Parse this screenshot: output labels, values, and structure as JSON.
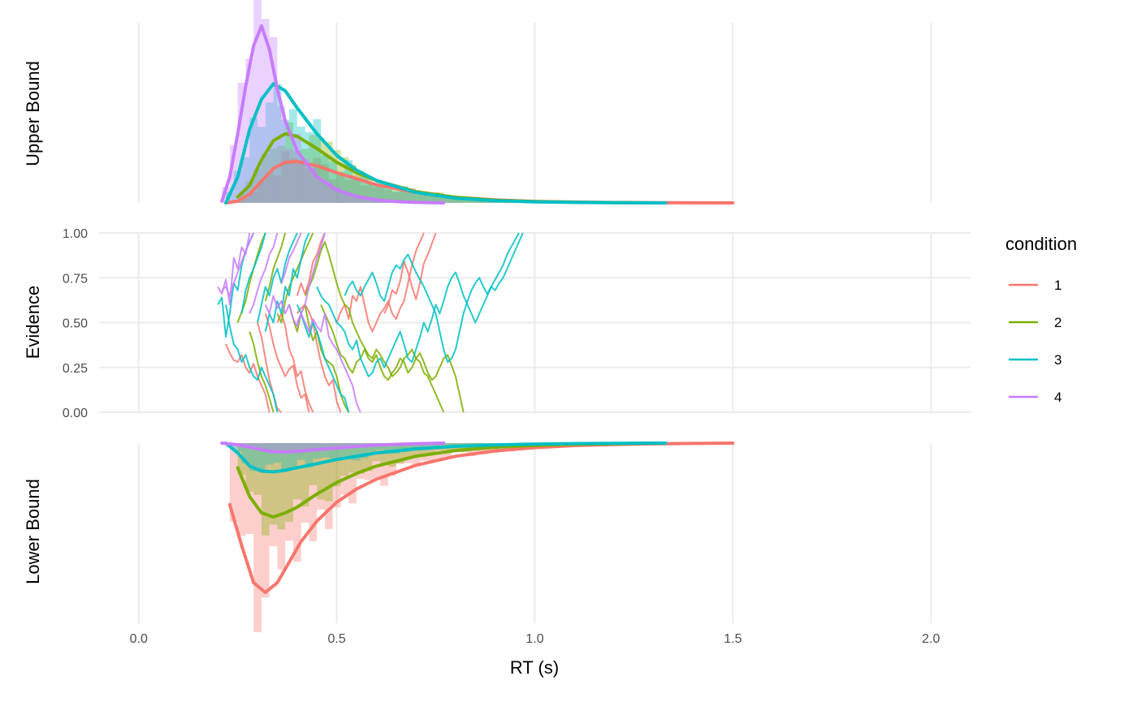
{
  "chart_data": {
    "type": "line",
    "xlabel": "RT (s)",
    "x_ticks": [
      "0.0",
      "0.5",
      "1.0",
      "1.5",
      "2.0"
    ],
    "x_tick_values": [
      0,
      0.5,
      1.0,
      1.5,
      2.0
    ],
    "xlim": [
      -0.1,
      2.1
    ],
    "grid": true,
    "legend": {
      "title": "condition",
      "placement": "right",
      "entries": [
        {
          "name": "1",
          "color": "#F8766D"
        },
        {
          "name": "2",
          "color": "#7CAE00"
        },
        {
          "name": "3",
          "color": "#00BFC4"
        },
        {
          "name": "4",
          "color": "#C77CFF"
        }
      ]
    },
    "panels": [
      {
        "id": "upper",
        "ylabel": "Upper Bound",
        "kind": "density_histogram"
      },
      {
        "id": "evidence",
        "ylabel": "Evidence",
        "kind": "paths",
        "y_ticks": [
          "0.00",
          "0.25",
          "0.50",
          "0.75",
          "1.00"
        ],
        "y_tick_values": [
          0,
          0.25,
          0.5,
          0.75,
          1.0
        ],
        "ylim": [
          0,
          1
        ]
      },
      {
        "id": "lower",
        "ylabel": "Lower Bound",
        "kind": "density_histogram"
      }
    ],
    "upper_density": [
      {
        "condition": "1",
        "x": [
          0.22,
          0.25,
          0.28,
          0.31,
          0.34,
          0.37,
          0.4,
          0.45,
          0.5,
          0.55,
          0.6,
          0.7,
          0.8,
          0.9,
          1.0,
          1.1,
          1.2,
          1.3,
          1.4,
          1.5
        ],
        "y": [
          0.0,
          0.02,
          0.1,
          0.25,
          0.4,
          0.47,
          0.48,
          0.43,
          0.35,
          0.28,
          0.21,
          0.12,
          0.065,
          0.035,
          0.018,
          0.009,
          0.005,
          0.003,
          0.001,
          0.0
        ]
      },
      {
        "condition": "2",
        "x": [
          0.25,
          0.28,
          0.31,
          0.34,
          0.37,
          0.4,
          0.45,
          0.5,
          0.55,
          0.6,
          0.7,
          0.8,
          0.9,
          1.0,
          1.1,
          1.2,
          1.3
        ],
        "y": [
          0.07,
          0.2,
          0.5,
          0.72,
          0.8,
          0.77,
          0.63,
          0.47,
          0.35,
          0.26,
          0.13,
          0.065,
          0.03,
          0.015,
          0.007,
          0.003,
          0.0
        ]
      },
      {
        "condition": "3",
        "x": [
          0.22,
          0.25,
          0.28,
          0.31,
          0.34,
          0.37,
          0.4,
          0.45,
          0.5,
          0.55,
          0.6,
          0.7,
          0.8,
          0.9,
          1.0,
          1.1,
          1.2,
          1.33
        ],
        "y": [
          0.0,
          0.3,
          0.85,
          1.2,
          1.38,
          1.3,
          1.1,
          0.8,
          0.55,
          0.38,
          0.26,
          0.12,
          0.055,
          0.025,
          0.012,
          0.006,
          0.003,
          0.0
        ]
      },
      {
        "condition": "4",
        "x": [
          0.21,
          0.23,
          0.25,
          0.27,
          0.29,
          0.31,
          0.33,
          0.35,
          0.37,
          0.4,
          0.45,
          0.5,
          0.55,
          0.6,
          0.65,
          0.7,
          0.77
        ],
        "y": [
          0.02,
          0.3,
          0.8,
          1.35,
          1.82,
          2.05,
          1.78,
          1.32,
          0.95,
          0.6,
          0.3,
          0.15,
          0.075,
          0.035,
          0.015,
          0.006,
          0.0
        ]
      }
    ],
    "lower_density": [
      {
        "condition": "1",
        "x": [
          0.23,
          0.26,
          0.29,
          0.32,
          0.35,
          0.38,
          0.41,
          0.45,
          0.5,
          0.55,
          0.6,
          0.7,
          0.8,
          0.9,
          1.0,
          1.1,
          1.2,
          1.3,
          1.4,
          1.5
        ],
        "y": [
          0.75,
          1.25,
          1.7,
          1.82,
          1.7,
          1.45,
          1.2,
          0.95,
          0.72,
          0.56,
          0.44,
          0.27,
          0.16,
          0.095,
          0.055,
          0.03,
          0.017,
          0.009,
          0.004,
          0.0
        ]
      },
      {
        "condition": "2",
        "x": [
          0.25,
          0.28,
          0.31,
          0.34,
          0.37,
          0.4,
          0.45,
          0.5,
          0.55,
          0.6,
          0.7,
          0.8,
          0.9,
          1.0,
          1.1,
          1.2,
          1.3
        ],
        "y": [
          0.3,
          0.65,
          0.85,
          0.9,
          0.85,
          0.78,
          0.62,
          0.48,
          0.37,
          0.28,
          0.16,
          0.09,
          0.05,
          0.027,
          0.014,
          0.007,
          0.0
        ]
      },
      {
        "condition": "3",
        "x": [
          0.22,
          0.25,
          0.28,
          0.31,
          0.34,
          0.37,
          0.4,
          0.45,
          0.5,
          0.55,
          0.6,
          0.7,
          0.8,
          0.9,
          1.0,
          1.1,
          1.2,
          1.33
        ],
        "y": [
          0.0,
          0.12,
          0.28,
          0.34,
          0.35,
          0.33,
          0.3,
          0.25,
          0.2,
          0.16,
          0.12,
          0.07,
          0.04,
          0.022,
          0.012,
          0.006,
          0.003,
          0.0
        ]
      },
      {
        "condition": "4",
        "x": [
          0.21,
          0.25,
          0.29,
          0.33,
          0.37,
          0.4,
          0.45,
          0.5,
          0.55,
          0.6,
          0.65,
          0.7,
          0.77
        ],
        "y": [
          0.0,
          0.02,
          0.06,
          0.1,
          0.11,
          0.1,
          0.08,
          0.06,
          0.04,
          0.025,
          0.015,
          0.008,
          0.0
        ]
      }
    ],
    "evidence_paths": [
      {
        "condition": "1",
        "t0": 0.22,
        "y": [
          0.38,
          0.33,
          0.29,
          0.28,
          0.32,
          0.25,
          0.22,
          0.27,
          0.2,
          0.15,
          0.1,
          0.0
        ]
      },
      {
        "condition": "1",
        "t0": 0.3,
        "y": [
          0.5,
          0.42,
          0.3,
          0.18,
          0.1,
          0.02,
          0.0
        ]
      },
      {
        "condition": "1",
        "t0": 0.32,
        "y": [
          0.55,
          0.48,
          0.38,
          0.3,
          0.25,
          0.2,
          0.24,
          0.26,
          0.15,
          0.08,
          0.1,
          0.0
        ]
      },
      {
        "condition": "1",
        "t0": 0.35,
        "y": [
          0.5,
          0.55,
          0.48,
          0.35,
          0.3,
          0.2,
          0.23,
          0.12,
          0.05,
          0.0
        ]
      },
      {
        "condition": "1",
        "t0": 0.4,
        "y": [
          0.55,
          0.58,
          0.6,
          0.56,
          0.5,
          0.38,
          0.28,
          0.2,
          0.15,
          0.18,
          0.06,
          0.0
        ]
      },
      {
        "condition": "1",
        "t0": 0.4,
        "y": [
          0.65,
          0.72,
          0.66,
          0.73,
          0.84,
          0.88,
          0.95,
          1.0
        ]
      },
      {
        "condition": "1",
        "t0": 0.5,
        "y": [
          0.5,
          0.56,
          0.6,
          0.52,
          0.65,
          0.62,
          0.7,
          0.6,
          0.5,
          0.45,
          0.5,
          0.55,
          0.58,
          0.62,
          0.55,
          0.52,
          0.58,
          0.62,
          0.72,
          0.82,
          0.9,
          0.95,
          1.0
        ]
      },
      {
        "condition": "1",
        "t0": 0.62,
        "y": [
          0.55,
          0.6,
          0.68,
          0.66,
          0.73,
          0.84,
          0.78,
          0.7,
          0.63,
          0.72,
          0.83,
          0.88,
          0.94,
          1.0
        ]
      },
      {
        "condition": "2",
        "t0": 0.25,
        "y": [
          0.5,
          0.56,
          0.62,
          0.72,
          0.8,
          0.88,
          0.95,
          1.0
        ]
      },
      {
        "condition": "2",
        "t0": 0.28,
        "y": [
          0.45,
          0.38,
          0.28,
          0.2,
          0.15,
          0.08,
          0.0
        ]
      },
      {
        "condition": "2",
        "t0": 0.32,
        "y": [
          0.62,
          0.7,
          0.8,
          0.86,
          0.92,
          1.0
        ]
      },
      {
        "condition": "2",
        "t0": 0.35,
        "y": [
          0.55,
          0.5,
          0.62,
          0.7,
          0.75,
          0.8,
          0.85,
          0.9,
          0.95,
          1.0
        ]
      },
      {
        "condition": "2",
        "t0": 0.38,
        "y": [
          0.6,
          0.52,
          0.45,
          0.55,
          0.6,
          0.48,
          0.4,
          0.45,
          0.35,
          0.3,
          0.28,
          0.26,
          0.2,
          0.1,
          0.04,
          0.0
        ]
      },
      {
        "condition": "2",
        "t0": 0.42,
        "y": [
          0.65,
          0.7,
          0.75,
          0.82,
          0.9,
          0.95,
          0.88,
          0.8,
          0.72,
          0.65,
          0.6,
          0.58,
          0.5,
          0.45,
          0.4,
          0.36,
          0.32,
          0.3,
          0.35,
          0.32,
          0.28,
          0.25,
          0.2,
          0.22,
          0.25,
          0.3,
          0.32,
          0.35,
          0.3,
          0.28,
          0.22,
          0.2,
          0.15,
          0.1,
          0.05,
          0.0
        ]
      },
      {
        "condition": "2",
        "t0": 0.46,
        "y": [
          0.6,
          0.55,
          0.5,
          0.45,
          0.38,
          0.32,
          0.3,
          0.25,
          0.22,
          0.28,
          0.3,
          0.35,
          0.3,
          0.28,
          0.32,
          0.25,
          0.2,
          0.18,
          0.22,
          0.25,
          0.3,
          0.28,
          0.22,
          0.25,
          0.3,
          0.33,
          0.28,
          0.22,
          0.18,
          0.2,
          0.25,
          0.3,
          0.32,
          0.26,
          0.2,
          0.1,
          0.0
        ]
      },
      {
        "condition": "3",
        "t0": 0.2,
        "y": [
          0.6,
          0.64,
          0.42,
          0.55,
          0.72,
          0.68,
          0.82,
          0.9,
          0.95,
          1.0
        ]
      },
      {
        "condition": "3",
        "t0": 0.22,
        "y": [
          0.6,
          0.48,
          0.38,
          0.35,
          0.28,
          0.32,
          0.25,
          0.2,
          0.18,
          0.25,
          0.2,
          0.15,
          0.1,
          0.0
        ]
      },
      {
        "condition": "3",
        "t0": 0.26,
        "y": [
          0.55,
          0.68,
          0.75,
          0.8,
          0.86,
          0.92,
          1.0
        ]
      },
      {
        "condition": "3",
        "t0": 0.3,
        "y": [
          0.5,
          0.6,
          0.7,
          0.65,
          0.75,
          0.8,
          0.72,
          0.83,
          0.9,
          0.95,
          1.0
        ]
      },
      {
        "condition": "3",
        "t0": 0.32,
        "y": [
          0.45,
          0.55,
          0.5,
          0.62,
          0.55,
          0.7,
          0.65,
          0.8,
          0.75,
          0.85,
          0.95,
          1.0
        ]
      },
      {
        "condition": "3",
        "t0": 0.4,
        "y": [
          0.6,
          0.55,
          0.48,
          0.42,
          0.5,
          0.45,
          0.38,
          0.3,
          0.25,
          0.2,
          0.15,
          0.1,
          0.08,
          0.0
        ]
      },
      {
        "condition": "3",
        "t0": 0.45,
        "y": [
          0.7,
          0.65,
          0.62,
          0.6,
          0.55,
          0.5,
          0.48,
          0.45,
          0.38,
          0.35,
          0.4,
          0.3,
          0.25,
          0.2,
          0.22,
          0.28,
          0.3,
          0.25,
          0.3,
          0.35,
          0.4,
          0.45,
          0.38,
          0.3,
          0.28,
          0.35,
          0.42,
          0.5,
          0.45,
          0.52,
          0.6,
          0.55,
          0.62,
          0.7,
          0.75,
          0.78,
          0.72,
          0.65,
          0.6,
          0.55,
          0.5,
          0.55,
          0.6,
          0.65,
          0.7,
          0.68,
          0.72,
          0.75,
          0.8,
          0.85,
          0.9,
          0.95,
          1.0
        ]
      },
      {
        "condition": "3",
        "t0": 0.52,
        "y": [
          0.65,
          0.7,
          0.73,
          0.68,
          0.65,
          0.7,
          0.74,
          0.78,
          0.72,
          0.65,
          0.62,
          0.7,
          0.78,
          0.82,
          0.8,
          0.85,
          0.88,
          0.83,
          0.78,
          0.74,
          0.7,
          0.65,
          0.6,
          0.55,
          0.45,
          0.35,
          0.28,
          0.3,
          0.35,
          0.45,
          0.55,
          0.62,
          0.68,
          0.72,
          0.75,
          0.7,
          0.66,
          0.7,
          0.74,
          0.78,
          0.82,
          0.88,
          0.92,
          0.96,
          1.0
        ]
      },
      {
        "condition": "4",
        "t0": 0.2,
        "y": [
          0.7,
          0.66,
          0.74,
          0.6,
          0.86,
          0.8,
          0.92,
          0.88,
          1.0
        ]
      },
      {
        "condition": "4",
        "t0": 0.21,
        "y": [
          0.68,
          0.7,
          0.65,
          0.72,
          0.78,
          0.84,
          0.9,
          0.95,
          1.0
        ]
      },
      {
        "condition": "4",
        "t0": 0.28,
        "y": [
          0.55,
          0.6,
          0.68,
          0.75,
          0.8,
          0.88,
          0.92,
          1.0
        ]
      },
      {
        "condition": "4",
        "t0": 0.32,
        "y": [
          0.6,
          0.55,
          0.65,
          0.58,
          0.62,
          0.55,
          0.6,
          0.52,
          0.48,
          0.55,
          0.5,
          0.45,
          0.52,
          0.48,
          0.45,
          0.55,
          0.42,
          0.38,
          0.35,
          0.3,
          0.25,
          0.2,
          0.15,
          0.05,
          0.0
        ]
      },
      {
        "condition": "4",
        "t0": 0.36,
        "y": [
          0.72,
          0.78,
          0.86,
          0.9,
          0.95,
          1.0
        ]
      },
      {
        "condition": "4",
        "t0": 0.4,
        "y": [
          0.5,
          0.55,
          0.6,
          0.7,
          0.78,
          0.86,
          0.92,
          1.0
        ]
      }
    ]
  }
}
